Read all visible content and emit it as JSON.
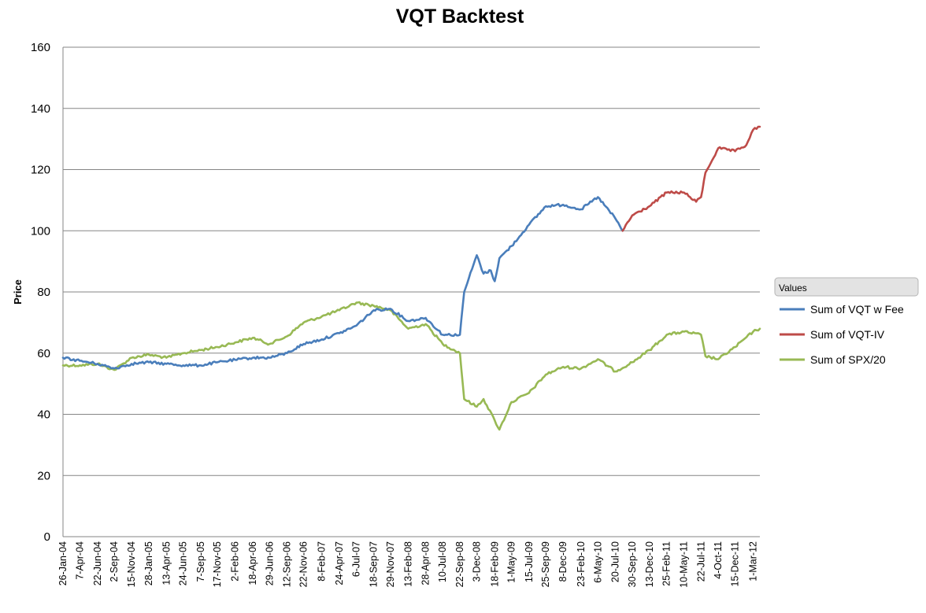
{
  "chart_data": {
    "type": "line",
    "title": "VQT Backtest",
    "xlabel": "",
    "ylabel": "Price",
    "ylim": [
      0,
      160
    ],
    "yticks": [
      0,
      20,
      40,
      60,
      80,
      100,
      120,
      140,
      160
    ],
    "xlim": [
      "26-Jan-04",
      "30-Mar-12"
    ],
    "grid": "horizontal",
    "legend": {
      "header": "Values",
      "placement": "right"
    },
    "x_tick_labels": [
      "26-Jan-04",
      "7-Apr-04",
      "22-Jun-04",
      "2-Sep-04",
      "15-Nov-04",
      "28-Jan-05",
      "13-Apr-05",
      "24-Jun-05",
      "7-Sep-05",
      "17-Nov-05",
      "2-Feb-06",
      "18-Apr-06",
      "29-Jun-06",
      "12-Sep-06",
      "22-Nov-06",
      "8-Feb-07",
      "24-Apr-07",
      "6-Jul-07",
      "18-Sep-07",
      "29-Nov-07",
      "13-Feb-08",
      "28-Apr-08",
      "10-Jul-08",
      "22-Sep-08",
      "3-Dec-08",
      "18-Feb-09",
      "1-May-09",
      "15-Jul-09",
      "25-Sep-09",
      "8-Dec-09",
      "23-Feb-10",
      "6-May-10",
      "20-Jul-10",
      "30-Sep-10",
      "13-Dec-10",
      "25-Feb-11",
      "10-May-11",
      "22-Jul-11",
      "4-Oct-11",
      "15-Dec-11",
      "1-Mar-12"
    ],
    "series": [
      {
        "name": "Sum of VQT w Fee",
        "color": "#4a7ebb",
        "points": [
          [
            "26-Jan-04",
            58.5
          ],
          [
            "7-Apr-04",
            57.5
          ],
          [
            "22-Jun-04",
            56.5
          ],
          [
            "2-Sep-04",
            55.0
          ],
          [
            "15-Nov-04",
            56.5
          ],
          [
            "28-Jan-05",
            57.0
          ],
          [
            "13-Apr-05",
            56.5
          ],
          [
            "24-Jun-05",
            56.0
          ],
          [
            "7-Sep-05",
            56.0
          ],
          [
            "17-Nov-05",
            57.0
          ],
          [
            "2-Feb-06",
            57.8
          ],
          [
            "18-Apr-06",
            58.5
          ],
          [
            "29-Jun-06",
            58.5
          ],
          [
            "12-Sep-06",
            60.0
          ],
          [
            "22-Nov-06",
            63.0
          ],
          [
            "8-Feb-07",
            64.5
          ],
          [
            "24-Apr-07",
            66.5
          ],
          [
            "6-Jul-07",
            69.0
          ],
          [
            "18-Sep-07",
            74.0
          ],
          [
            "29-Nov-07",
            74.5
          ],
          [
            "13-Feb-08",
            70.5
          ],
          [
            "28-Apr-08",
            71.5
          ],
          [
            "10-Jul-08",
            66.0
          ],
          [
            "22-Sep-08",
            66.0
          ],
          [
            "10-Oct-08",
            80.0
          ],
          [
            "3-Dec-08",
            92.0
          ],
          [
            "1-Jan-09",
            86.0
          ],
          [
            "1-Feb-09",
            87.0
          ],
          [
            "18-Feb-09",
            83.5
          ],
          [
            "10-Mar-09",
            91.0
          ],
          [
            "1-May-09",
            95.0
          ],
          [
            "15-Jul-09",
            102.0
          ],
          [
            "25-Sep-09",
            108.0
          ],
          [
            "8-Dec-09",
            108.5
          ],
          [
            "23-Feb-10",
            107.0
          ],
          [
            "6-May-10",
            111.0
          ],
          [
            "20-Jul-10",
            104.0
          ],
          [
            "20-Aug-10",
            100.0
          ]
        ]
      },
      {
        "name": "Sum of VQT-IV",
        "color": "#be4b48",
        "points": [
          [
            "20-Aug-10",
            100.0
          ],
          [
            "30-Sep-10",
            105.0
          ],
          [
            "13-Dec-10",
            108.0
          ],
          [
            "25-Feb-11",
            112.5
          ],
          [
            "10-May-11",
            112.5
          ],
          [
            "1-Jul-11",
            109.5
          ],
          [
            "22-Jul-11",
            111.0
          ],
          [
            "10-Aug-11",
            119.0
          ],
          [
            "4-Oct-11",
            127.0
          ],
          [
            "15-Dec-11",
            126.0
          ],
          [
            "1-Feb-12",
            128.0
          ],
          [
            "1-Mar-12",
            133.0
          ],
          [
            "30-Mar-12",
            134.0
          ]
        ]
      },
      {
        "name": "Sum of SPX/20",
        "color": "#98b954",
        "points": [
          [
            "26-Jan-04",
            56.0
          ],
          [
            "7-Apr-04",
            56.0
          ],
          [
            "22-Jun-04",
            56.5
          ],
          [
            "2-Sep-04",
            54.5
          ],
          [
            "15-Nov-04",
            58.5
          ],
          [
            "28-Jan-05",
            59.5
          ],
          [
            "13-Apr-05",
            58.5
          ],
          [
            "24-Jun-05",
            60.0
          ],
          [
            "7-Sep-05",
            61.0
          ],
          [
            "17-Nov-05",
            62.0
          ],
          [
            "2-Feb-06",
            63.5
          ],
          [
            "18-Apr-06",
            65.0
          ],
          [
            "29-Jun-06",
            63.0
          ],
          [
            "12-Sep-06",
            65.5
          ],
          [
            "22-Nov-06",
            70.0
          ],
          [
            "8-Feb-07",
            72.0
          ],
          [
            "24-Apr-07",
            74.0
          ],
          [
            "6-Jul-07",
            76.5
          ],
          [
            "18-Sep-07",
            75.5
          ],
          [
            "29-Nov-07",
            74.0
          ],
          [
            "13-Feb-08",
            68.0
          ],
          [
            "28-Apr-08",
            69.5
          ],
          [
            "10-Jul-08",
            63.0
          ],
          [
            "22-Sep-08",
            60.0
          ],
          [
            "10-Oct-08",
            45.0
          ],
          [
            "3-Dec-08",
            42.5
          ],
          [
            "1-Jan-09",
            45.0
          ],
          [
            "18-Feb-09",
            38.0
          ],
          [
            "10-Mar-09",
            35.0
          ],
          [
            "1-May-09",
            44.0
          ],
          [
            "15-Jul-09",
            47.0
          ],
          [
            "25-Sep-09",
            53.0
          ],
          [
            "8-Dec-09",
            55.5
          ],
          [
            "23-Feb-10",
            55.0
          ],
          [
            "6-May-10",
            58.0
          ],
          [
            "20-Jul-10",
            54.0
          ],
          [
            "30-Sep-10",
            57.0
          ],
          [
            "13-Dec-10",
            61.0
          ],
          [
            "25-Feb-11",
            66.0
          ],
          [
            "10-May-11",
            67.0
          ],
          [
            "22-Jul-11",
            66.0
          ],
          [
            "10-Aug-11",
            59.0
          ],
          [
            "4-Oct-11",
            58.0
          ],
          [
            "15-Dec-11",
            62.0
          ],
          [
            "1-Mar-12",
            67.0
          ],
          [
            "30-Mar-12",
            68.0
          ]
        ]
      }
    ]
  }
}
